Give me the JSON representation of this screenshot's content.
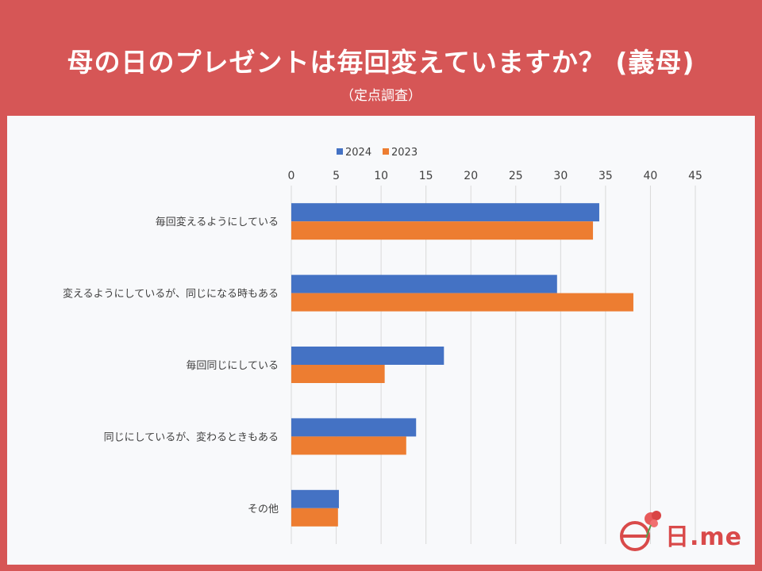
{
  "title": "母の日のプレゼントは毎回変えていますか？ (義母)",
  "subtitle": "（定点調査）",
  "colors": {
    "series_2024": "#4472c4",
    "series_2023": "#ed7d31",
    "grid": "#d9d9d9",
    "label": "#404040"
  },
  "logo": {
    "text": "日.me"
  },
  "chart_data": {
    "type": "bar",
    "orientation": "horizontal",
    "title": "母の日のプレゼントは毎回変えていますか？ (義母)",
    "subtitle": "（定点調査）",
    "categories": [
      "毎回変えるようにしている",
      "変えるようにしているが、同じになる時もある",
      "毎回同じにしている",
      "同じにしているが、変わるときもある",
      "その他"
    ],
    "series": [
      {
        "name": "2024",
        "values": [
          34.3,
          29.6,
          17.0,
          13.9,
          5.3
        ]
      },
      {
        "name": "2023",
        "values": [
          33.6,
          38.1,
          10.4,
          12.8,
          5.2
        ]
      }
    ],
    "xlim": [
      0,
      45
    ],
    "xticks": [
      "0",
      "5",
      "10",
      "15",
      "20",
      "25",
      "30",
      "35",
      "40",
      "45"
    ],
    "legend": "top"
  }
}
